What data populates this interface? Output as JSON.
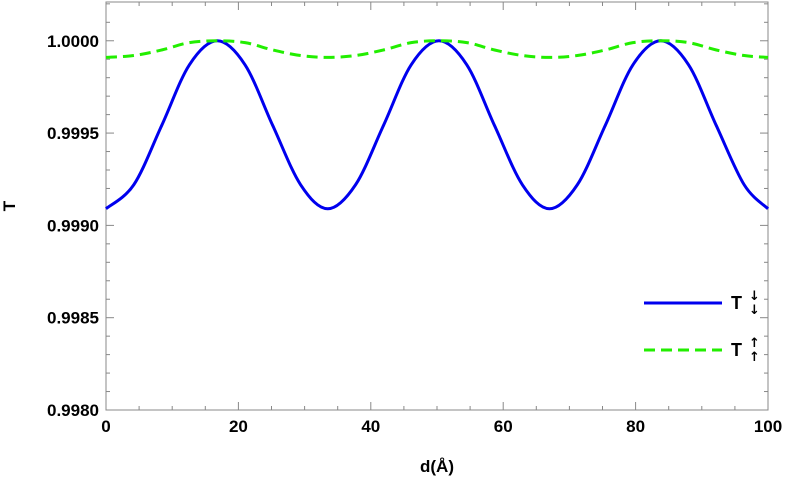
{
  "chart_data": {
    "type": "line",
    "title": "",
    "xlabel": "d(Å)",
    "ylabel": "T",
    "xlim": [
      0,
      100
    ],
    "ylim": [
      0.998,
      1.00021
    ],
    "x_ticks": [
      0,
      20,
      40,
      60,
      80,
      100
    ],
    "x_tick_labels": [
      "0",
      "20",
      "40",
      "60",
      "80",
      "100"
    ],
    "y_ticks": [
      0.998,
      0.9985,
      0.999,
      0.9995,
      1.0
    ],
    "y_tick_labels": [
      "0.9980",
      "0.9985",
      "0.9990",
      "0.9995",
      "1.0000"
    ],
    "grid": false,
    "legend_position": "right",
    "series": [
      {
        "legend_main": "T",
        "legend_arrows": "↓↓",
        "color": "#0000ee",
        "style": "solid",
        "x": [
          0,
          4.2,
          8.4,
          12.6,
          16.8,
          21.0,
          25.2,
          29.4,
          33.5,
          37.7,
          41.9,
          46.1,
          50.3,
          54.5,
          58.7,
          62.9,
          67.0,
          71.2,
          75.4,
          79.6,
          83.8,
          88.0,
          92.2,
          96.4,
          100
        ],
        "y": [
          0.99909,
          0.99922,
          0.99954,
          0.99987,
          1.0,
          0.99987,
          0.99954,
          0.99922,
          0.99909,
          0.99922,
          0.99954,
          0.99987,
          1.0,
          0.99987,
          0.99954,
          0.99922,
          0.99909,
          0.99922,
          0.99954,
          0.99987,
          1.0,
          0.99987,
          0.99954,
          0.99922,
          0.99909
        ]
      },
      {
        "legend_main": "T",
        "legend_arrows": "↑↑",
        "color": "#22ee00",
        "style": "dashed",
        "x": [
          0,
          4.2,
          8.4,
          12.6,
          16.8,
          21.0,
          25.2,
          29.4,
          33.5,
          37.7,
          41.9,
          46.1,
          50.3,
          54.5,
          58.7,
          62.9,
          67.0,
          71.2,
          75.4,
          79.6,
          83.8,
          88.0,
          92.2,
          96.4,
          100
        ],
        "y": [
          0.99991,
          0.99992,
          0.99995,
          0.99999,
          1.0,
          0.99999,
          0.99995,
          0.99992,
          0.99991,
          0.99992,
          0.99995,
          0.99999,
          1.0,
          0.99999,
          0.99995,
          0.99992,
          0.99991,
          0.99992,
          0.99995,
          0.99999,
          1.0,
          0.99999,
          0.99995,
          0.99992,
          0.99991
        ]
      }
    ]
  }
}
